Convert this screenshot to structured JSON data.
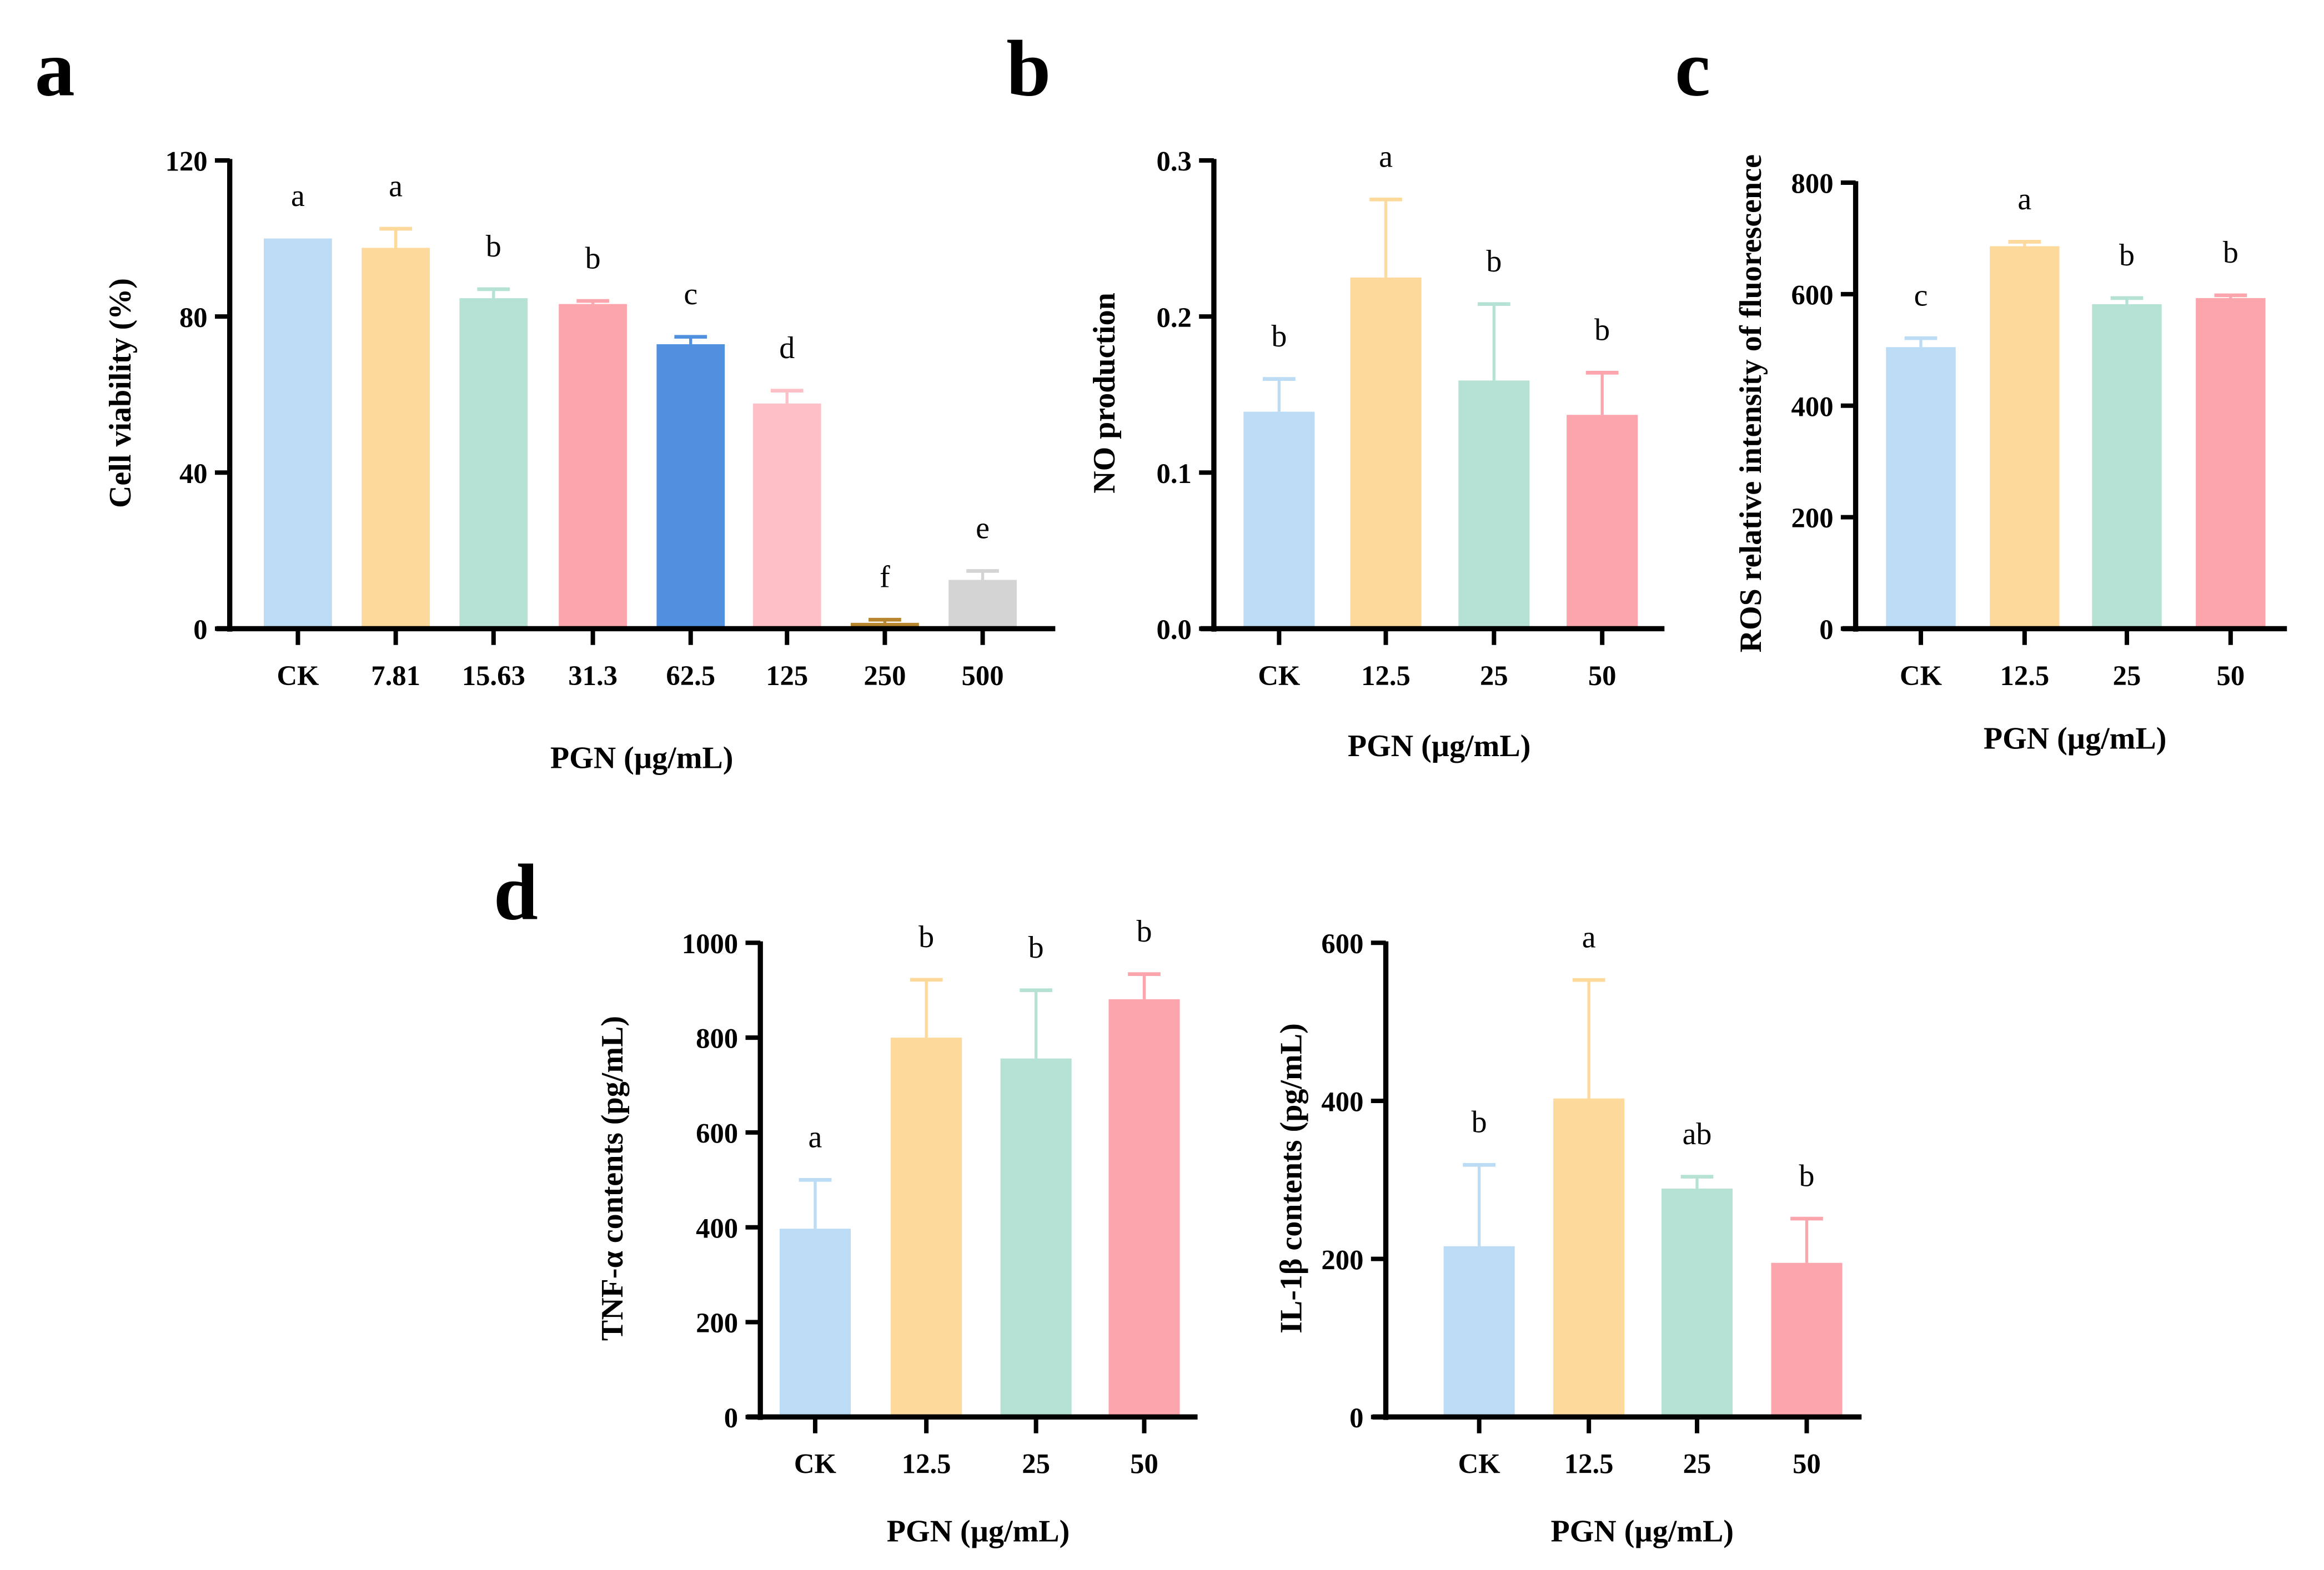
{
  "chart_data": [
    {
      "type": "bar",
      "panel": "a",
      "categories": [
        "CK",
        "7.81",
        "15.63",
        "31.3",
        "62.5",
        "125",
        "250",
        "500"
      ],
      "values": [
        100,
        97.6,
        84.7,
        83.2,
        72.9,
        57.7,
        1.5,
        12.5
      ],
      "errors": [
        0,
        4.9,
        2.3,
        0.8,
        1.9,
        3.3,
        0.8,
        2.3
      ],
      "significance": [
        "a",
        "a",
        "b",
        "b",
        "c",
        "d",
        "f",
        "e"
      ],
      "colors": [
        "#bbdcf4",
        "#fdd99b",
        "#b5e2d4",
        "#fca5ad",
        "#5190df",
        "#fec0c6",
        "#b8862f",
        "#d4d4d4"
      ],
      "xlabel": "PGN (µg/mL)",
      "ylabel": "Cell viability (%)",
      "ylim": [
        0,
        120
      ],
      "yticks": [
        "0",
        "40",
        "80",
        "120"
      ]
    },
    {
      "type": "bar",
      "panel": "b",
      "categories": [
        "CK",
        "12.5",
        "25",
        "50"
      ],
      "values": [
        0.139,
        0.225,
        0.159,
        0.137
      ],
      "errors": [
        0.021,
        0.05,
        0.049,
        0.027
      ],
      "significance": [
        "b",
        "a",
        "b",
        "b"
      ],
      "colors": [
        "#bbdcf4",
        "#fdd99b",
        "#b5e2d4",
        "#fca5ad"
      ],
      "xlabel": "PGN (µg/mL)",
      "ylabel": "NO production",
      "ylim": [
        0,
        0.3
      ],
      "yticks": [
        "0.0",
        "0.1",
        "0.2",
        "0.3"
      ]
    },
    {
      "type": "bar",
      "panel": "c",
      "categories": [
        "CK",
        "12.5",
        "25",
        "50"
      ],
      "values": [
        505,
        686,
        582,
        593
      ],
      "errors": [
        16,
        8,
        11,
        5
      ],
      "significance": [
        "c",
        "a",
        "b",
        "b"
      ],
      "colors": [
        "#bbdcf4",
        "#fdd99b",
        "#b5e2d4",
        "#fca5ad"
      ],
      "xlabel": "PGN (µg/mL)",
      "ylabel": "ROS relative intensity of fluorescence",
      "ylim": [
        0,
        800
      ],
      "yticks": [
        "0",
        "200",
        "400",
        "600",
        "800"
      ]
    },
    {
      "type": "bar",
      "panel": "d",
      "categories": [
        "CK",
        "12.5",
        "25",
        "50"
      ],
      "values": [
        397,
        800,
        756,
        881
      ],
      "errors": [
        103,
        122,
        144,
        53
      ],
      "significance": [
        "a",
        "b",
        "b",
        "b"
      ],
      "colors": [
        "#bbdcf4",
        "#fdd99b",
        "#b5e2d4",
        "#fca5ad"
      ],
      "xlabel": "PGN (µg/mL)",
      "ylabel": "TNF-α contents (pg/mL)",
      "ylim": [
        0,
        1000
      ],
      "yticks": [
        "0",
        "200",
        "400",
        "600",
        "800",
        "1000"
      ]
    },
    {
      "type": "bar",
      "panel": "",
      "categories": [
        "CK",
        "12.5",
        "25",
        "50"
      ],
      "values": [
        216,
        403,
        289,
        195
      ],
      "errors": [
        103,
        150,
        15,
        56
      ],
      "significance": [
        "b",
        "a",
        "ab",
        "b"
      ],
      "colors": [
        "#bbdcf4",
        "#fdd99b",
        "#b5e2d4",
        "#fca5ad"
      ],
      "xlabel": "PGN (µg/mL)",
      "ylabel": "IL-1β contents (pg/mL)",
      "ylim": [
        0,
        600
      ],
      "yticks": [
        "0",
        "200",
        "400",
        "600"
      ]
    }
  ]
}
